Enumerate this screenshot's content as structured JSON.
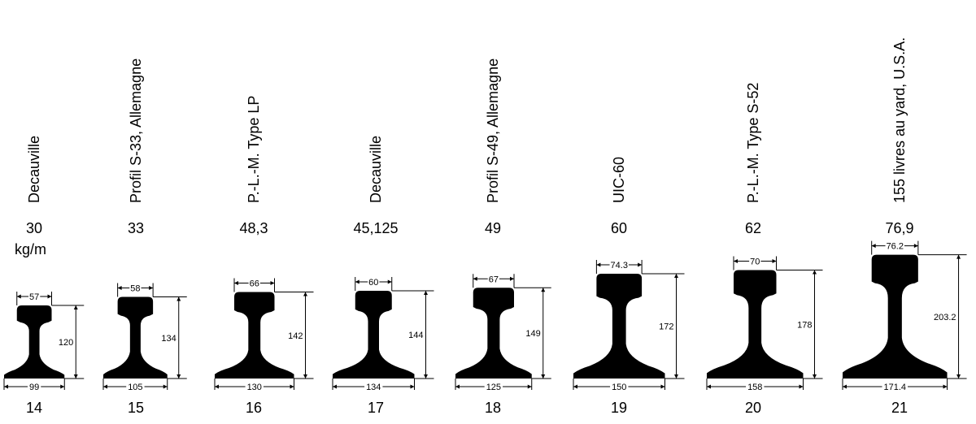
{
  "unit_label": "kg/m",
  "rails": [
    {
      "number": "14",
      "name": "Decauville",
      "weight": "30",
      "head": "57",
      "height": "120",
      "base": "99",
      "hw": 57,
      "h": 120,
      "bw": 99
    },
    {
      "number": "15",
      "name": "Profil S-33, Allemagne",
      "weight": "33",
      "head": "58",
      "height": "134",
      "base": "105",
      "hw": 58,
      "h": 134,
      "bw": 105
    },
    {
      "number": "16",
      "name": "P.-L.-M. Type LP",
      "weight": "48,3",
      "head": "66",
      "height": "142",
      "base": "130",
      "hw": 66,
      "h": 142,
      "bw": 130
    },
    {
      "number": "17",
      "name": "Decauville",
      "weight": "45,125",
      "head": "60",
      "height": "144",
      "base": "134",
      "hw": 60,
      "h": 144,
      "bw": 134
    },
    {
      "number": "18",
      "name": "Profil S-49, Allemagne",
      "weight": "49",
      "head": "67",
      "height": "149",
      "base": "125",
      "hw": 67,
      "h": 149,
      "bw": 125
    },
    {
      "number": "19",
      "name": "UIC-60",
      "weight": "60",
      "head": "74.3",
      "height": "172",
      "base": "150",
      "hw": 74.3,
      "h": 172,
      "bw": 150
    },
    {
      "number": "20",
      "name": "P.-L.-M. Type S-52",
      "weight": "62",
      "head": "70",
      "height": "178",
      "base": "158",
      "hw": 70,
      "h": 178,
      "bw": 158
    },
    {
      "number": "21",
      "name": "155 livres au yard, U.S.A.",
      "weight": "76,9",
      "head": "76.2",
      "height": "203.2",
      "base": "171.4",
      "hw": 76.2,
      "h": 203.2,
      "bw": 171.4
    }
  ]
}
